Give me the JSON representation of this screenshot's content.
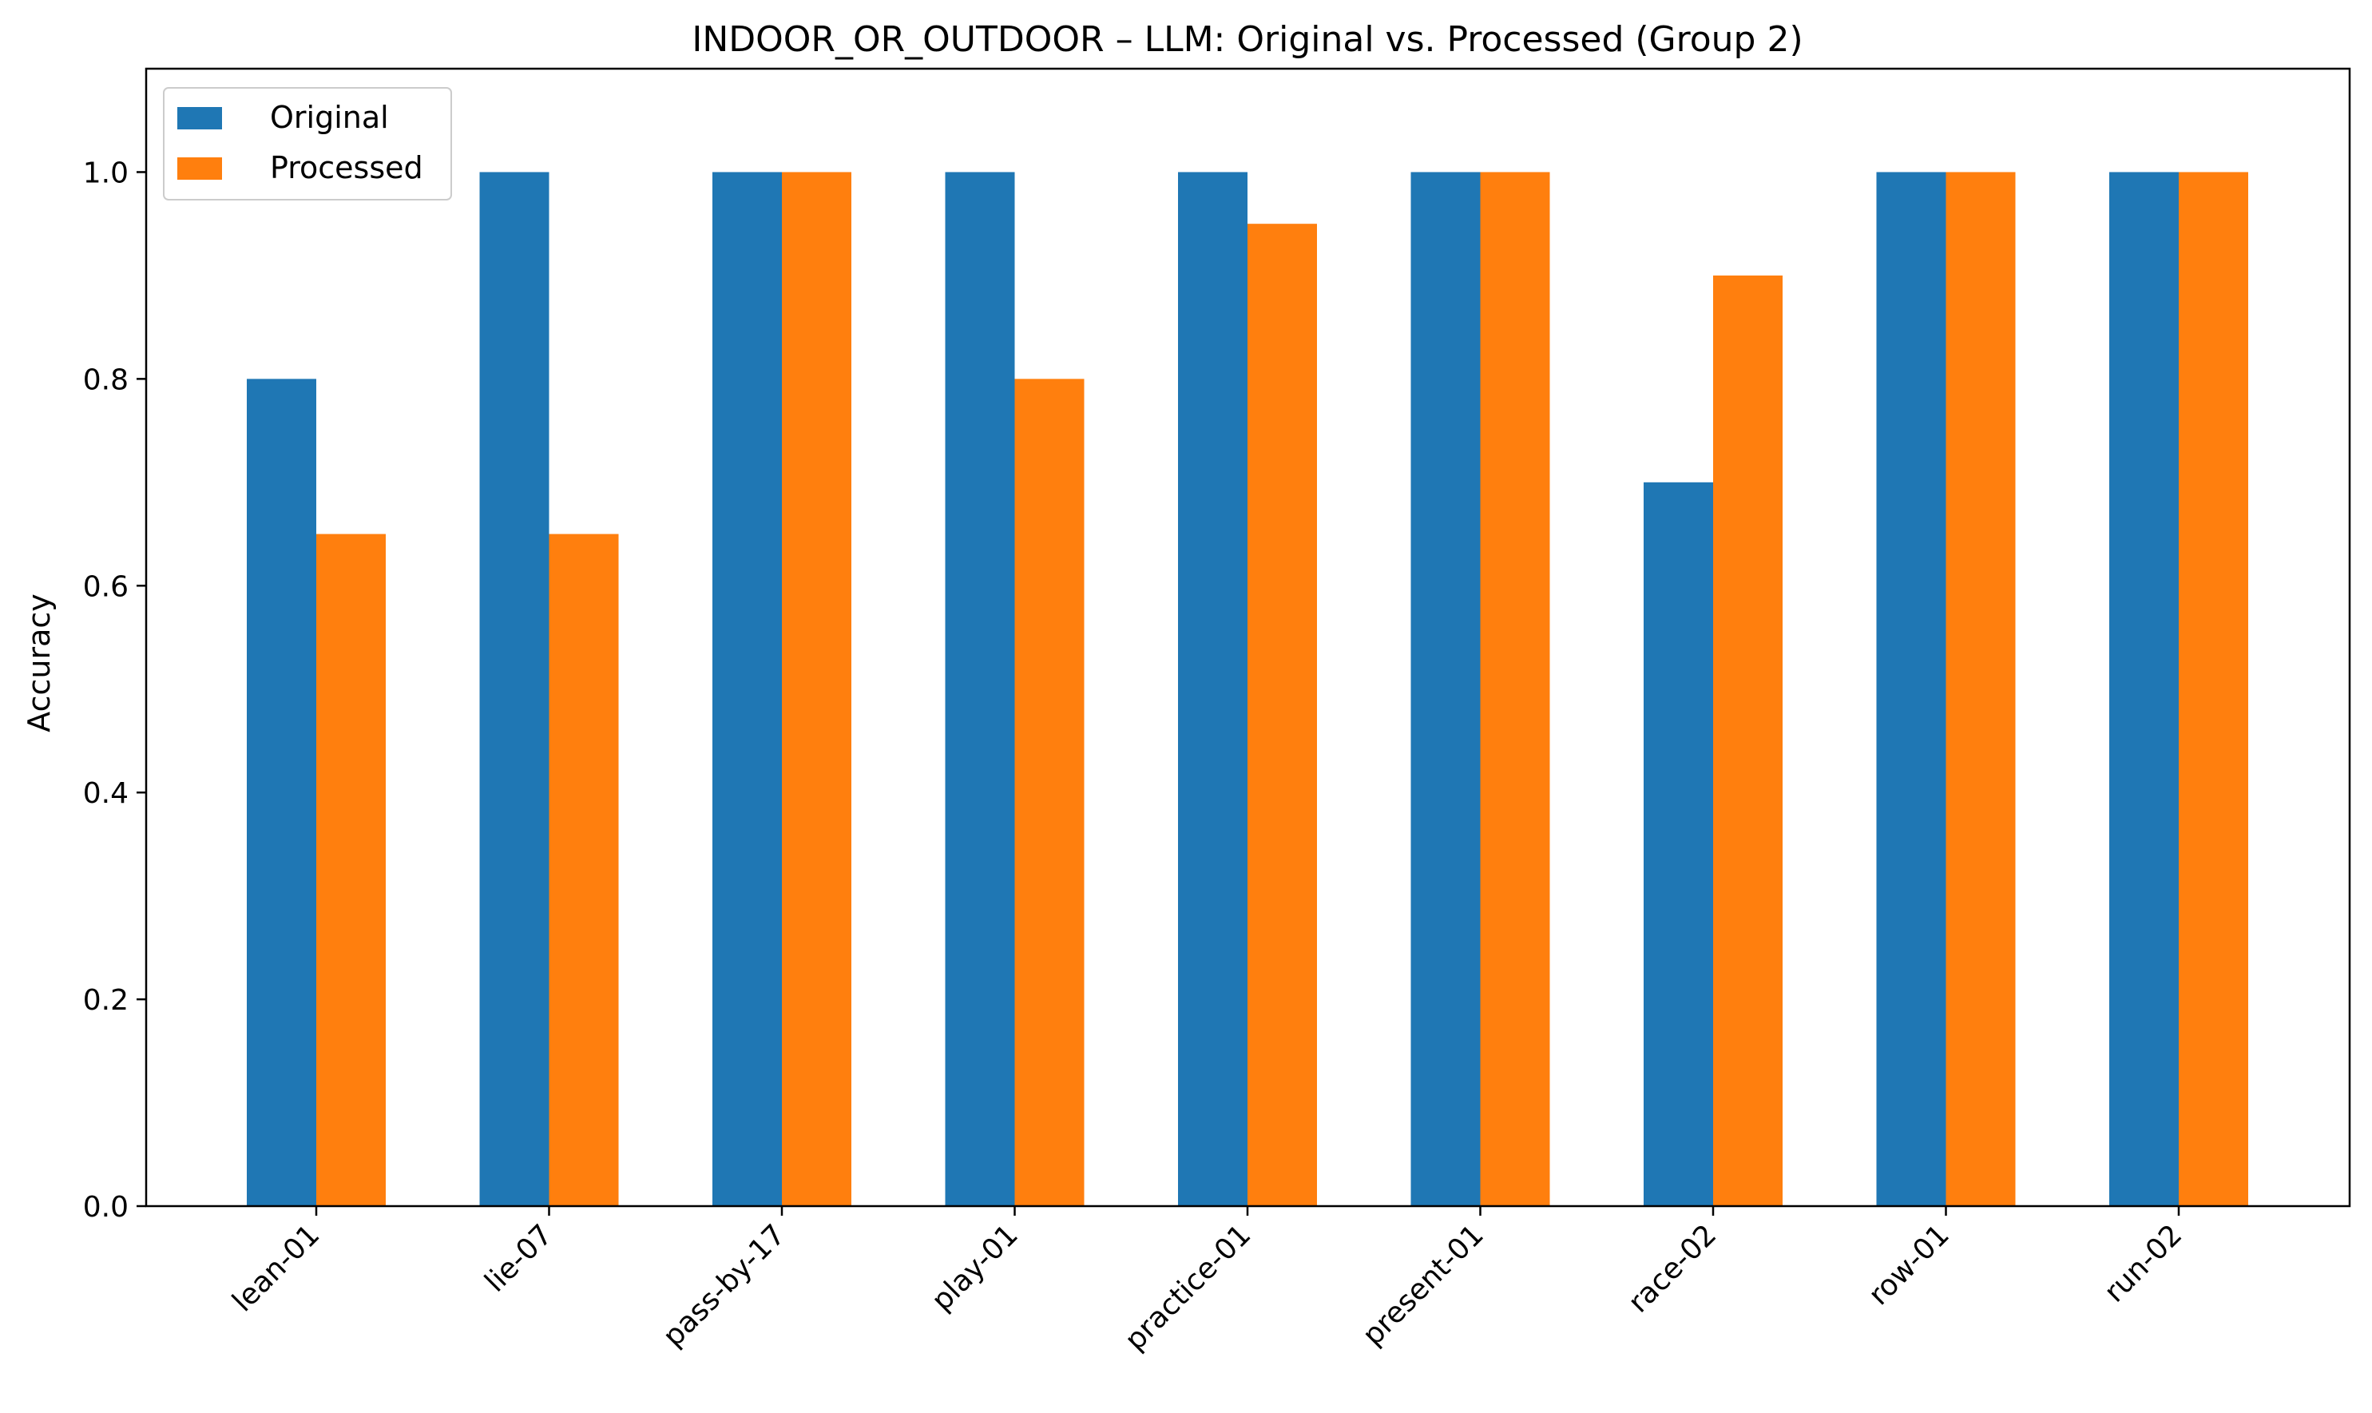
{
  "chart_data": {
    "type": "bar",
    "title": "INDOOR_OR_OUTDOOR – LLM: Original vs. Processed (Group 2)",
    "xlabel": "",
    "ylabel": "Accuracy",
    "categories": [
      "lean-01",
      "lie-07",
      "pass-by-17",
      "play-01",
      "practice-01",
      "present-01",
      "race-02",
      "row-01",
      "run-02"
    ],
    "series": [
      {
        "name": "Original",
        "color": "#1f77b4",
        "values": [
          0.8,
          1.0,
          1.0,
          1.0,
          1.0,
          1.0,
          0.7,
          1.0,
          1.0
        ]
      },
      {
        "name": "Processed",
        "color": "#ff7f0e",
        "values": [
          0.65,
          0.65,
          1.0,
          0.8,
          0.95,
          1.0,
          0.9,
          1.0,
          1.0
        ]
      }
    ],
    "ylim": [
      0,
      1.1
    ],
    "yticks": [
      0.0,
      0.2,
      0.4,
      0.6,
      0.8,
      1.0
    ],
    "ytick_labels": [
      "0.0",
      "0.2",
      "0.4",
      "0.6",
      "0.8",
      "1.0"
    ],
    "grid": false,
    "legend_position": "top-left"
  }
}
